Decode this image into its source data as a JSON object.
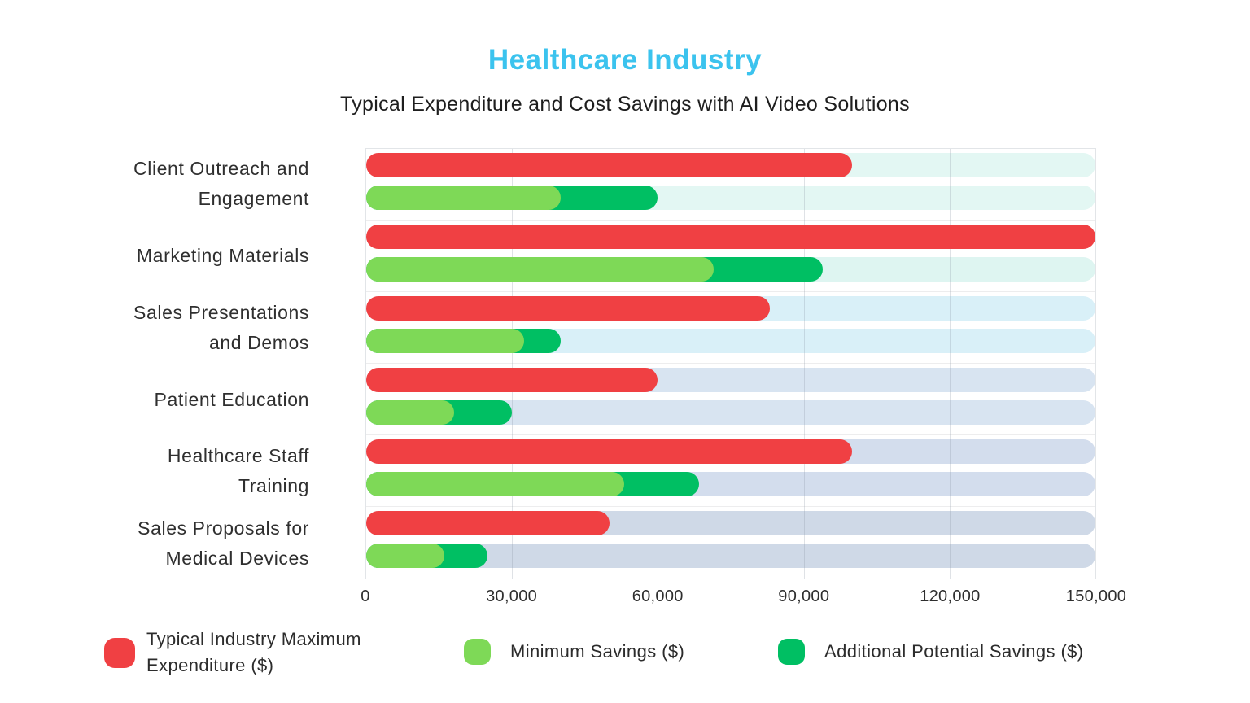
{
  "title": "Healthcare Industry",
  "subtitle": "Typical Expenditure and Cost Savings with AI Video Solutions",
  "colors": {
    "title": "#3bc3ee",
    "expenditure": "#f04043",
    "min_savings": "#7ed957",
    "additional_savings": "#00bf63",
    "label_text": "#2f2f2f"
  },
  "legend": {
    "items": [
      {
        "label": "Typical Industry Maximum Expenditure ($)",
        "lines": [
          "Typical Industry Maximum",
          "Expenditure ($)"
        ],
        "color": "#f04043"
      },
      {
        "label": "Minimum Savings ($)",
        "lines": [
          "Minimum Savings ($)"
        ],
        "color": "#7ed957"
      },
      {
        "label": "Additional Potential Savings ($)",
        "lines": [
          "Additional Potential Savings ($)"
        ],
        "color": "#00bf63"
      }
    ]
  },
  "chart_data": {
    "type": "bar",
    "orientation": "horizontal",
    "title": "Healthcare Industry",
    "subtitle": "Typical Expenditure and Cost Savings with AI Video Solutions",
    "xlim": [
      0,
      150000
    ],
    "x_ticks": [
      "0",
      "30,000",
      "60,000",
      "90,000",
      "120,000",
      "150,000"
    ],
    "x_tick_values": [
      0,
      30000,
      60000,
      90000,
      120000,
      150000
    ],
    "grid": true,
    "legend_position": "bottom",
    "categories": [
      "Client Outreach and Engagement",
      "Marketing Materials",
      "Sales Presentations and Demos",
      "Patient Education",
      "Healthcare Staff Training",
      "Sales Proposals for Medical Devices"
    ],
    "category_label_lines": [
      [
        "Client Outreach and",
        "Engagement"
      ],
      [
        "Marketing Materials"
      ],
      [
        "Sales Presentations",
        "and Demos"
      ],
      [
        "Patient Education"
      ],
      [
        "Healthcare Staff",
        "Training"
      ],
      [
        "Sales Proposals for",
        "Medical Devices"
      ]
    ],
    "series": [
      {
        "name": "Typical Industry Maximum Expenditure ($)",
        "color": "#f04043",
        "values": [
          100000,
          150000,
          83000,
          60000,
          100000,
          50000
        ]
      },
      {
        "name": "Minimum Savings ($)",
        "color": "#7ed957",
        "values": [
          40000,
          71500,
          32500,
          18000,
          53000,
          16000
        ]
      },
      {
        "name": "Additional Potential Savings ($)",
        "color": "#00bf63",
        "values": [
          20000,
          22500,
          7500,
          12000,
          15500,
          9000
        ]
      }
    ],
    "total_savings_values": [
      60000,
      94000,
      40000,
      30000,
      68500,
      25000
    ],
    "track_colors": [
      "#e3f7f3",
      "#def5f1",
      "#d9f0f8",
      "#d8e4f1",
      "#d3dded",
      "#cfd9e7"
    ]
  }
}
